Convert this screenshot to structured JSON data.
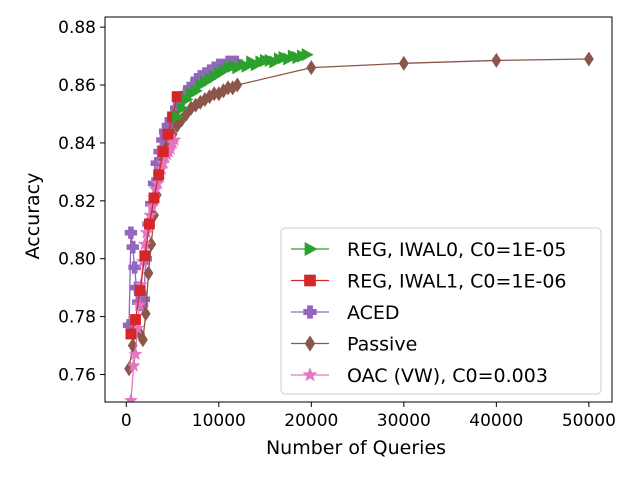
{
  "chart_data": {
    "type": "line",
    "title": "",
    "xlabel": "Number of Queries",
    "ylabel": "Accuracy",
    "xlim": [
      -2300,
      52500
    ],
    "ylim": [
      0.7505,
      0.8835
    ],
    "xticks": [
      {
        "value": 0,
        "label": "0"
      },
      {
        "value": 10000,
        "label": "10000"
      },
      {
        "value": 20000,
        "label": "20000"
      },
      {
        "value": 30000,
        "label": "30000"
      },
      {
        "value": 40000,
        "label": "40000"
      },
      {
        "value": 50000,
        "label": "50000"
      }
    ],
    "yticks": [
      {
        "value": 0.76,
        "label": "0.76"
      },
      {
        "value": 0.78,
        "label": "0.78"
      },
      {
        "value": 0.8,
        "label": "0.80"
      },
      {
        "value": 0.82,
        "label": "0.82"
      },
      {
        "value": 0.84,
        "label": "0.84"
      },
      {
        "value": 0.86,
        "label": "0.86"
      },
      {
        "value": 0.88,
        "label": "0.88"
      }
    ],
    "grid": false,
    "legend_position": "bottom-right",
    "series": [
      {
        "name": "ACED",
        "color": "#9467bd",
        "marker": "plus",
        "x": [
          300,
          500,
          700,
          900,
          1100,
          1300,
          1500,
          1700,
          1900,
          2100,
          2400,
          2700,
          3000,
          3300,
          3600,
          3900,
          4200,
          4500,
          4800,
          5100,
          5400,
          5700,
          6000,
          6400,
          6800,
          7200,
          7600,
          8000,
          8500,
          9000,
          9500,
          10000,
          10500,
          11000,
          11500,
          11900
        ],
        "y": [
          0.777,
          0.809,
          0.804,
          0.797,
          0.79,
          0.785,
          0.788,
          0.784,
          0.786,
          0.8,
          0.812,
          0.819,
          0.826,
          0.833,
          0.837,
          0.841,
          0.844,
          0.846,
          0.848,
          0.849,
          0.852,
          0.854,
          0.855,
          0.857,
          0.859,
          0.86,
          0.862,
          0.863,
          0.864,
          0.865,
          0.866,
          0.867,
          0.867,
          0.868,
          0.868,
          0.868
        ]
      },
      {
        "name": "Passive",
        "color": "#8c564b",
        "marker": "diamond",
        "x": [
          300,
          700,
          1100,
          1500,
          1800,
          2100,
          2400,
          2700,
          3000,
          3300,
          3600,
          4000,
          4500,
          5000,
          5500,
          6000,
          6500,
          7000,
          7500,
          8000,
          8500,
          9000,
          9500,
          10000,
          10500,
          11000,
          11500,
          12000,
          20000,
          30000,
          40000,
          50000
        ],
        "y": [
          0.762,
          0.77,
          0.776,
          0.774,
          0.772,
          0.781,
          0.795,
          0.805,
          0.815,
          0.822,
          0.828,
          0.834,
          0.839,
          0.843,
          0.846,
          0.848,
          0.85,
          0.852,
          0.853,
          0.854,
          0.855,
          0.856,
          0.857,
          0.857,
          0.858,
          0.859,
          0.859,
          0.86,
          0.866,
          0.8675,
          0.8685,
          0.869
        ]
      },
      {
        "name": "OAC (VW), C0=0.003",
        "color": "#e377c2",
        "marker": "star",
        "x": [
          500,
          800,
          1000,
          1200,
          1400,
          1600,
          1800,
          2000,
          2200,
          2400,
          2600,
          2800,
          3000,
          3200,
          3400,
          3600,
          3800,
          4000,
          4200,
          4400,
          4600,
          4800,
          5000,
          5200
        ],
        "y": [
          0.751,
          0.763,
          0.767,
          0.776,
          0.784,
          0.791,
          0.799,
          0.805,
          0.809,
          0.812,
          0.815,
          0.818,
          0.821,
          0.824,
          0.826,
          0.829,
          0.831,
          0.833,
          0.835,
          0.836,
          0.837,
          0.838,
          0.84,
          0.841
        ]
      },
      {
        "name": "REG, IWAL1, C0=1E-06",
        "color": "#d62728",
        "marker": "square",
        "x": [
          500,
          1000,
          1500,
          2000,
          2500,
          3000,
          3500,
          4000,
          4500,
          5000,
          5500
        ],
        "y": [
          0.774,
          0.779,
          0.789,
          0.801,
          0.812,
          0.821,
          0.829,
          0.837,
          0.843,
          0.849,
          0.856
        ]
      },
      {
        "name": "REG, IWAL0, C0=1E-05",
        "color": "#2ca02c",
        "marker": "triangle-right",
        "x": [
          5500,
          6000,
          6500,
          7000,
          7500,
          8000,
          8500,
          9000,
          9500,
          10000,
          10500,
          11000,
          11500,
          12000,
          12500,
          13000,
          13500,
          14000,
          14500,
          15000,
          15500,
          16000,
          16500,
          17000,
          17500,
          18000,
          18500,
          19000,
          19500
        ],
        "y": [
          0.849,
          0.852,
          0.855,
          0.857,
          0.858,
          0.86,
          0.861,
          0.862,
          0.863,
          0.864,
          0.865,
          0.866,
          0.8665,
          0.866,
          0.867,
          0.8665,
          0.868,
          0.867,
          0.868,
          0.8685,
          0.8685,
          0.868,
          0.869,
          0.8695,
          0.869,
          0.87,
          0.8695,
          0.87,
          0.8705
        ]
      }
    ],
    "legend_order": [
      "REG, IWAL0, C0=1E-05",
      "REG, IWAL1, C0=1E-06",
      "ACED",
      "Passive",
      "OAC (VW), C0=0.003"
    ]
  }
}
